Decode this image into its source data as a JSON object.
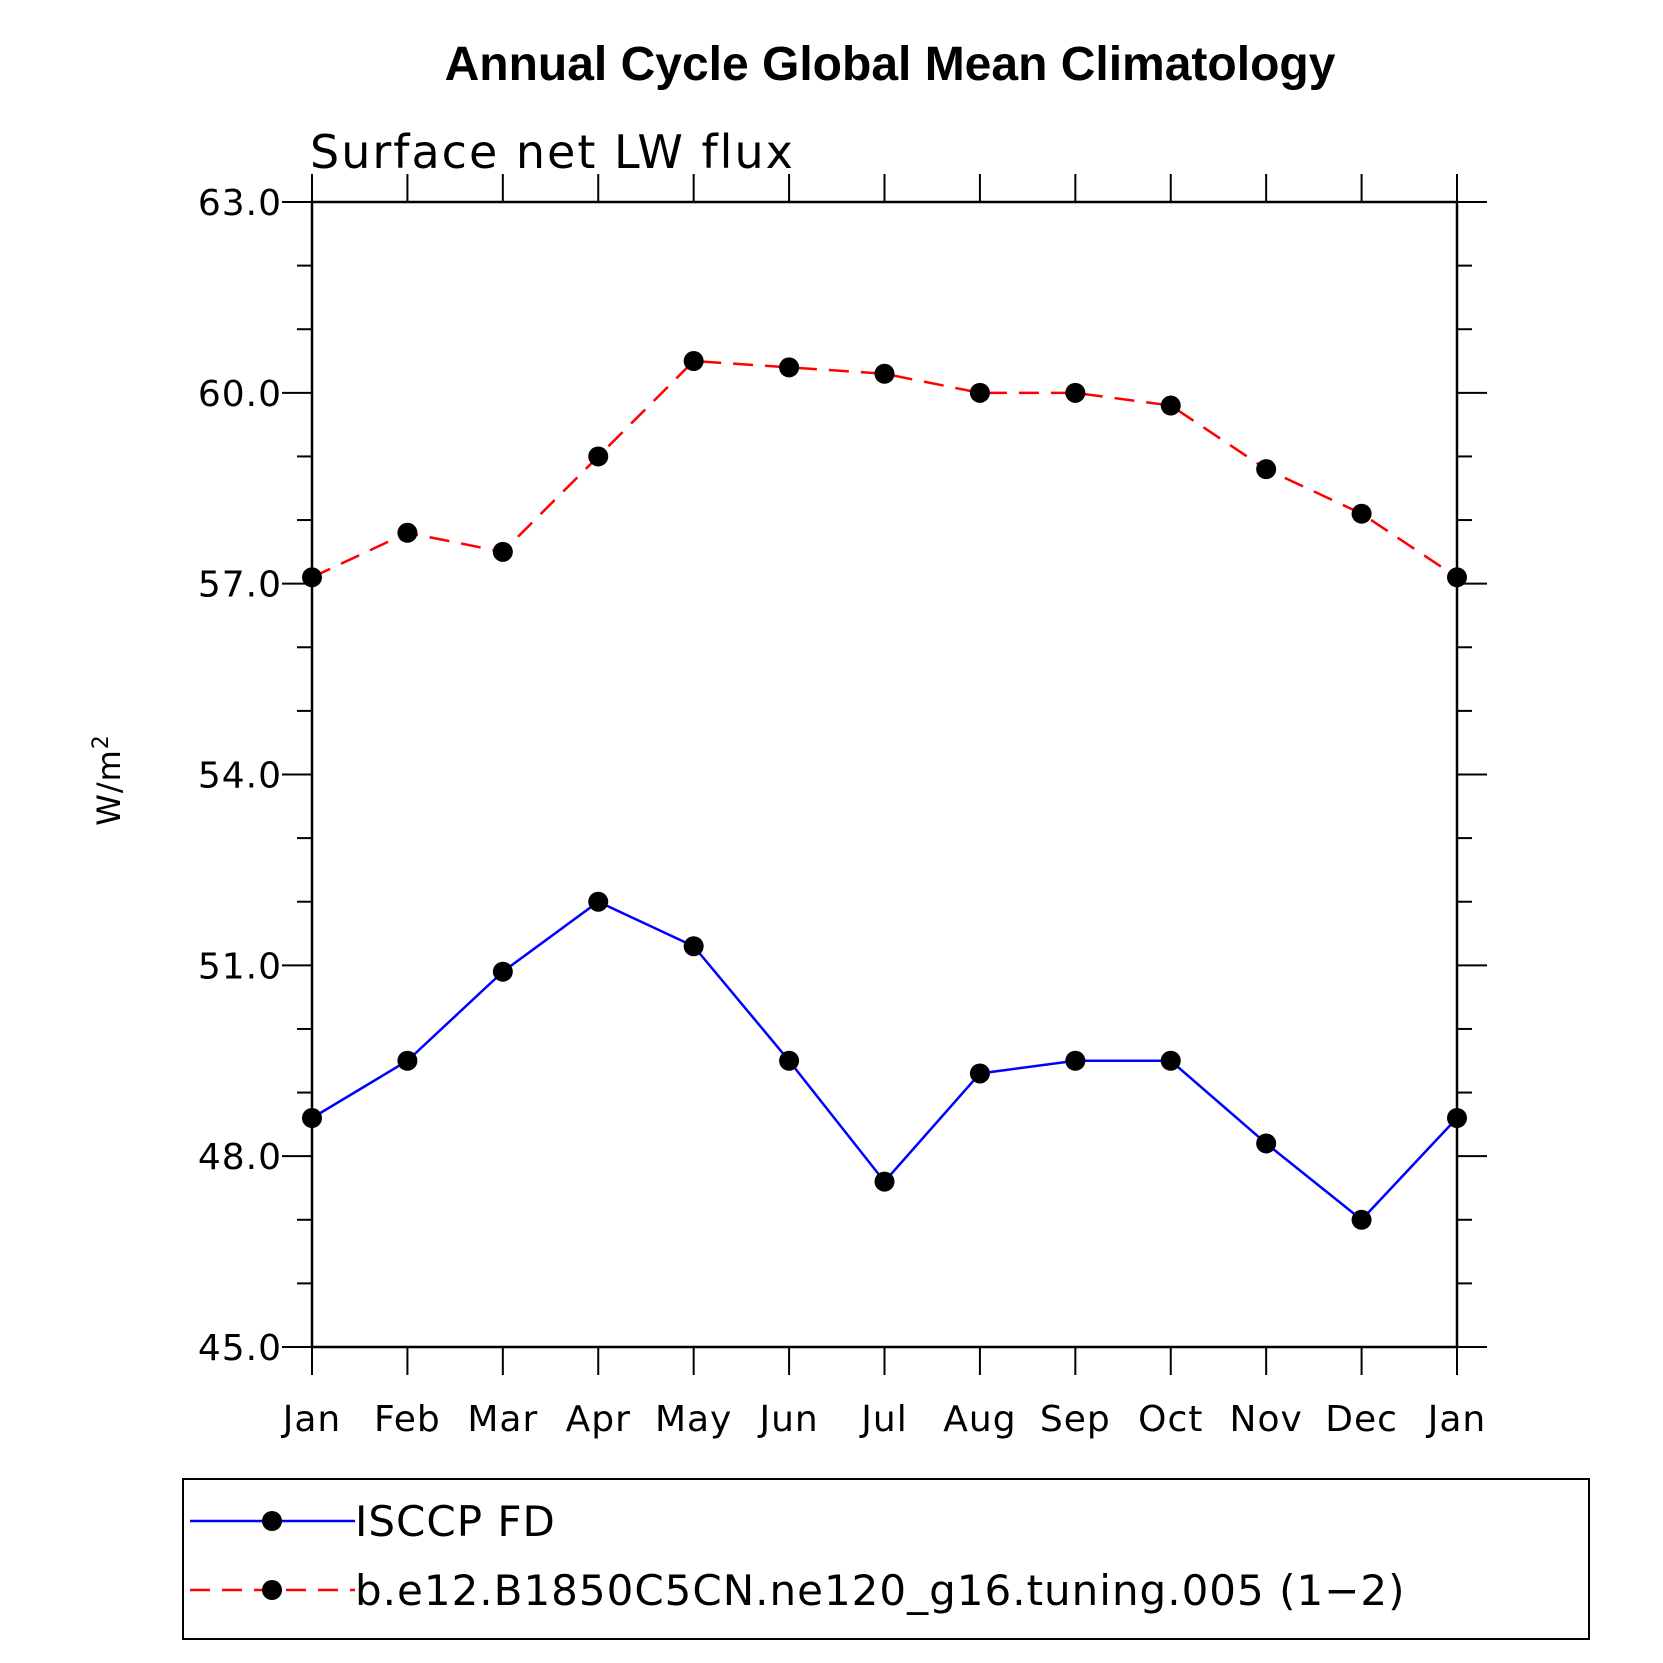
{
  "chart_data": {
    "type": "line",
    "title": "Annual Cycle Global Mean Climatology",
    "subtitle": "Surface net LW flux",
    "ylabel": "W/m",
    "ylabel_superscript": "2",
    "xlabel": "",
    "categories": [
      "Jan",
      "Feb",
      "Mar",
      "Apr",
      "May",
      "Jun",
      "Jul",
      "Aug",
      "Sep",
      "Oct",
      "Nov",
      "Dec",
      "Jan"
    ],
    "ylim": [
      45.0,
      63.0
    ],
    "y_ticks": [
      "45.0",
      "48.0",
      "51.0",
      "54.0",
      "57.0",
      "60.0",
      "63.0"
    ],
    "y_minor_step": 1.0,
    "grid": false,
    "legend_position": "bottom",
    "series": [
      {
        "name": "ISCCP FD",
        "color": "#0000ff",
        "dash": "solid",
        "marker": "filled-circle",
        "values": [
          48.6,
          49.5,
          50.9,
          52.0,
          51.3,
          49.5,
          47.6,
          49.3,
          49.5,
          49.5,
          48.2,
          47.0,
          48.6
        ]
      },
      {
        "name": "b.e12.B1850C5CN.ne120_g16.tuning.005 (1−2)",
        "color": "#ff0000",
        "dash": "dashed",
        "marker": "filled-circle",
        "values": [
          57.1,
          57.8,
          57.5,
          59.0,
          60.5,
          60.4,
          60.3,
          60.0,
          60.0,
          59.8,
          58.8,
          58.1,
          57.1
        ]
      }
    ]
  }
}
